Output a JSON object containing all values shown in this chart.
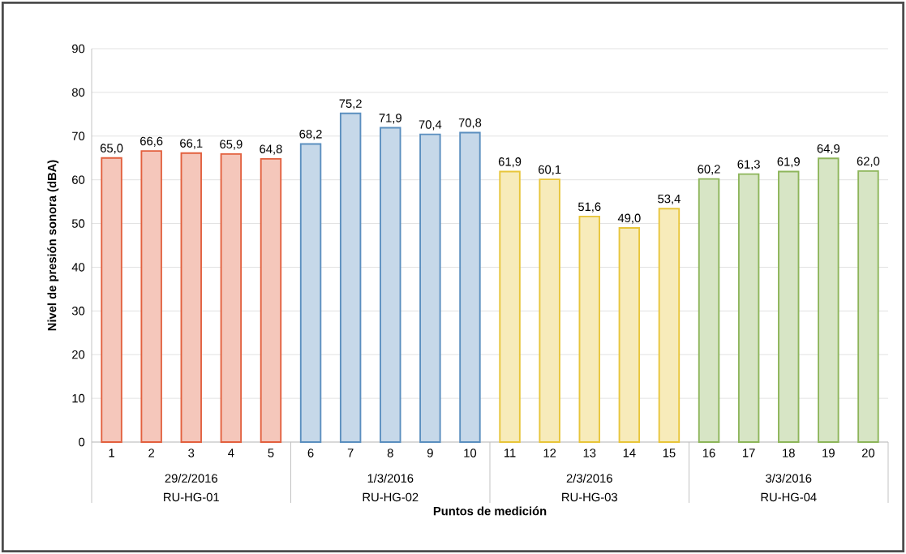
{
  "chart_data": {
    "type": "bar",
    "xlabel": "Puntos de medición",
    "ylabel": "Nivel de presión sonora (dBA)",
    "categories": [
      "1",
      "2",
      "3",
      "4",
      "5",
      "6",
      "7",
      "8",
      "9",
      "10",
      "11",
      "12",
      "13",
      "14",
      "15",
      "16",
      "17",
      "18",
      "19",
      "20"
    ],
    "values": [
      65.0,
      66.6,
      66.1,
      65.9,
      64.8,
      68.2,
      75.2,
      71.9,
      70.4,
      70.8,
      61.9,
      60.1,
      51.6,
      49.0,
      53.4,
      60.2,
      61.3,
      61.9,
      64.9,
      62.0
    ],
    "value_labels": [
      "65,0",
      "66,6",
      "66,1",
      "65,9",
      "64,8",
      "68,2",
      "75,2",
      "71,9",
      "70,4",
      "70,8",
      "61,9",
      "60,1",
      "51,6",
      "49,0",
      "53,4",
      "60,2",
      "61,3",
      "61,9",
      "64,9",
      "62,0"
    ],
    "colors": [
      "#e2603e",
      "#e2603e",
      "#e2603e",
      "#e2603e",
      "#e2603e",
      "#5b8fbf",
      "#5b8fbf",
      "#5b8fbf",
      "#5b8fbf",
      "#5b8fbf",
      "#e8c53a",
      "#e8c53a",
      "#e8c53a",
      "#e8c53a",
      "#e8c53a",
      "#8db55a",
      "#8db55a",
      "#8db55a",
      "#8db55a",
      "#8db55a"
    ],
    "annotations": [
      "29/2/2016",
      "1/3/2016",
      "2/3/2016",
      "3/3/2016",
      "RU-HG-01",
      "RU-HG-02",
      "RU-HG-03",
      "RU-HG-04"
    ],
    "ylim": [
      0,
      90
    ],
    "yticks": [
      0,
      10,
      20,
      30,
      40,
      50,
      60,
      70,
      80,
      90
    ],
    "grid": "y"
  }
}
